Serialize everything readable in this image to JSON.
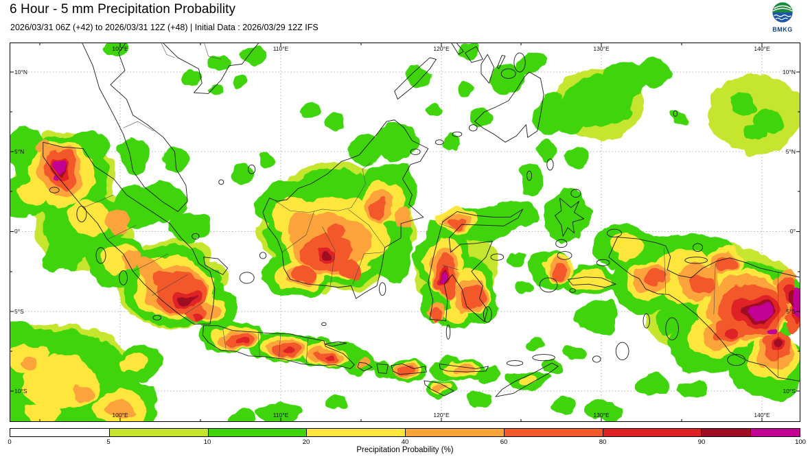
{
  "header": {
    "title": "6 Hour - 5 mm Precipitation Probability",
    "subtitle": "2026/03/31 06Z (+42) to 2026/03/31 12Z (+48) | Initial Data : 2026/03/29 12Z IFS",
    "logo_text": "BMKG"
  },
  "map": {
    "lon_labels": [
      "100°E",
      "110°E",
      "120°E",
      "130°E",
      "140°E"
    ],
    "lat_labels": [
      "10°N",
      "5°N",
      "0°",
      "5°S",
      "10°S"
    ]
  },
  "legend": {
    "title": "Precipitation Probability (%)",
    "ticks": [
      "0",
      "5",
      "10",
      "20",
      "40",
      "60",
      "80",
      "90",
      "100"
    ],
    "cells": [
      {
        "range": "0-5",
        "color": "#ffffff",
        "span": 1
      },
      {
        "range": "5-10",
        "color": "#c5e52e",
        "span": 1
      },
      {
        "range": "10-20",
        "color": "#3fd40b",
        "span": 1
      },
      {
        "range": "20-40",
        "color": "#ffe63e",
        "span": 1
      },
      {
        "range": "40-60",
        "color": "#fca43a",
        "span": 1
      },
      {
        "range": "60-80",
        "color": "#f2592b",
        "span": 1
      },
      {
        "range": "80-90",
        "color": "#de2126",
        "span": 1
      },
      {
        "range": "90-95",
        "color": "#9e0d23",
        "span": 0.5
      },
      {
        "range": "95-100",
        "color": "#c20394",
        "span": 0.5
      }
    ]
  }
}
